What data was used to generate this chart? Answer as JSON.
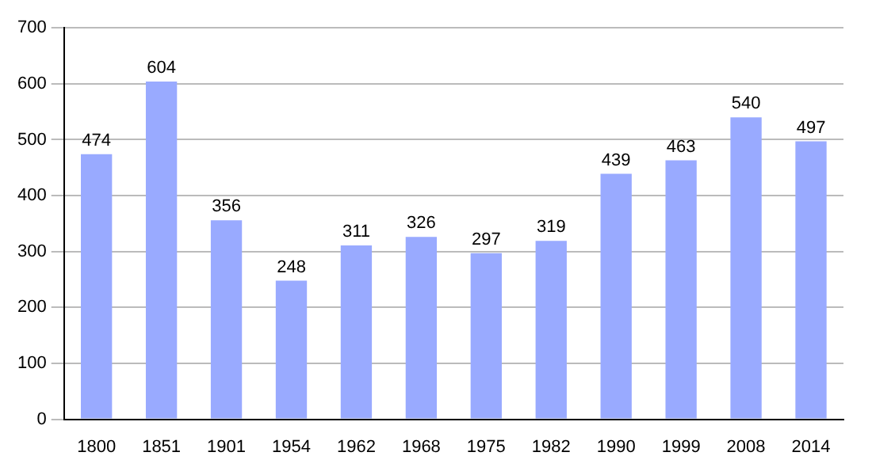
{
  "chart_data": {
    "type": "bar",
    "categories": [
      "1800",
      "1851",
      "1901",
      "1954",
      "1962",
      "1968",
      "1975",
      "1982",
      "1990",
      "1999",
      "2008",
      "2014"
    ],
    "values": [
      474,
      604,
      356,
      248,
      311,
      326,
      297,
      319,
      439,
      463,
      540,
      497
    ],
    "color": "#99aaff",
    "ylim": [
      0,
      700
    ],
    "yticks": [
      0,
      100,
      200,
      300,
      400,
      500,
      600,
      700
    ],
    "grid": "y",
    "data_labels": true,
    "legend": false
  }
}
